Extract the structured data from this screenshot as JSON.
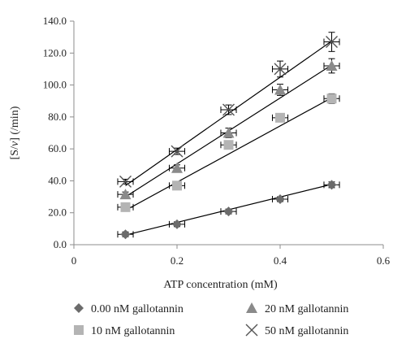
{
  "chart_data": {
    "type": "scatter",
    "xlabel": "ATP concentration (mM)",
    "ylabel_parts": [
      "[S/",
      "v",
      "] (/min)"
    ],
    "xlim": [
      0,
      0.6
    ],
    "ylim": [
      0,
      140
    ],
    "x_ticks": [
      "0",
      "0.2",
      "0.4",
      "0.6"
    ],
    "y_ticks": [
      "0.0",
      "20.0",
      "40.0",
      "60.0",
      "80.0",
      "100.0",
      "120.0",
      "140.0"
    ],
    "x_tick_values": [
      0,
      0.2,
      0.4,
      0.6
    ],
    "y_tick_values": [
      0,
      20,
      40,
      60,
      80,
      100,
      120,
      140
    ],
    "grid": false,
    "legend_position": "bottom",
    "series": [
      {
        "name": "0.00 nM gallotannin",
        "marker": "diamond",
        "color": "#6b6b6b",
        "x": [
          0.1,
          0.2,
          0.3,
          0.4,
          0.5
        ],
        "y": [
          6.5,
          12.8,
          20.8,
          28.5,
          37.5
        ],
        "fit": [
          [
            0.1,
            6.0
          ],
          [
            0.5,
            37.8
          ]
        ],
        "xerr": 0.015,
        "yerr": [
          1.5,
          1.5,
          1.5,
          1.5,
          1.8
        ]
      },
      {
        "name": "10 nM gallotannin",
        "marker": "square",
        "color": "#b4b4b4",
        "x": [
          0.1,
          0.2,
          0.3,
          0.4,
          0.5
        ],
        "y": [
          23.5,
          37.0,
          62.5,
          79.5,
          91.5
        ],
        "fit": [
          [
            0.1,
            21.5
          ],
          [
            0.5,
            92.0
          ]
        ],
        "xerr": 0.015,
        "yerr": [
          1.5,
          1.5,
          2.5,
          2.5,
          3.0
        ]
      },
      {
        "name": "20 nM gallotannin",
        "marker": "triangle",
        "color": "#8a8a8a",
        "x": [
          0.1,
          0.2,
          0.3,
          0.4,
          0.5
        ],
        "y": [
          31.5,
          48.0,
          70.0,
          97.0,
          112.0
        ],
        "fit": [
          [
            0.1,
            30.0
          ],
          [
            0.5,
            112.5
          ]
        ],
        "xerr": 0.015,
        "yerr": [
          1.5,
          2.0,
          3.0,
          3.5,
          4.5
        ]
      },
      {
        "name": "50 nM gallotannin",
        "marker": "cross",
        "color": "#555555",
        "x": [
          0.1,
          0.2,
          0.3,
          0.4,
          0.5
        ],
        "y": [
          39.5,
          58.5,
          84.5,
          110.0,
          127.0
        ],
        "fit": [
          [
            0.1,
            37.0
          ],
          [
            0.5,
            127.5
          ]
        ],
        "xerr": 0.015,
        "yerr": [
          1.5,
          2.0,
          3.0,
          5.0,
          6.0
        ]
      }
    ]
  },
  "legend": [
    {
      "label": "0.00 nM gallotannin",
      "marker": "diamond"
    },
    {
      "label": "20 nM gallotannin",
      "marker": "triangle"
    },
    {
      "label": "10 nM gallotannin",
      "marker": "square"
    },
    {
      "label": "50 nM gallotannin",
      "marker": "cross"
    }
  ]
}
